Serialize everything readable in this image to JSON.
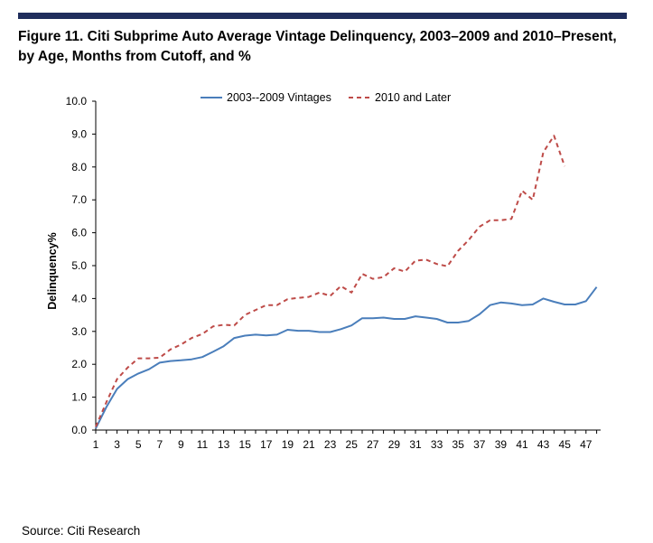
{
  "title": "Figure 11. Citi Subprime Auto Average Vintage Delinquency, 2003–2009 and 2010–Present, by Age, Months from Cutoff, and %",
  "source": "Source: Citi Research",
  "colors": {
    "bar": "#1f2d5c",
    "series1": "#4a7ebb",
    "series2": "#be4b48"
  },
  "chart_data": {
    "type": "line",
    "ylabel": "Delinquency%",
    "xlabel": "",
    "ylim": [
      0,
      10
    ],
    "yticks": [
      "0.0",
      "1.0",
      "2.0",
      "3.0",
      "4.0",
      "5.0",
      "6.0",
      "7.0",
      "8.0",
      "9.0",
      "10.0"
    ],
    "xlim": [
      1,
      48
    ],
    "xticks": [
      "1",
      "3",
      "5",
      "7",
      "9",
      "11",
      "13",
      "15",
      "17",
      "19",
      "21",
      "23",
      "25",
      "27",
      "29",
      "31",
      "33",
      "35",
      "37",
      "39",
      "41",
      "43",
      "45",
      "47"
    ],
    "legend_position": "top",
    "grid": false,
    "series": [
      {
        "name": "2003--2009 Vintages",
        "style": "solid",
        "x": [
          1,
          2,
          3,
          4,
          5,
          6,
          7,
          8,
          9,
          10,
          11,
          12,
          13,
          14,
          15,
          16,
          17,
          18,
          19,
          20,
          21,
          22,
          23,
          24,
          25,
          26,
          27,
          28,
          29,
          30,
          31,
          32,
          33,
          34,
          35,
          36,
          37,
          38,
          39,
          40,
          41,
          42,
          43,
          44,
          45,
          46,
          47,
          48
        ],
        "values": [
          0.05,
          0.7,
          1.25,
          1.55,
          1.72,
          1.85,
          2.05,
          2.1,
          2.12,
          2.15,
          2.22,
          2.38,
          2.55,
          2.8,
          2.87,
          2.9,
          2.88,
          2.9,
          3.05,
          3.02,
          3.02,
          2.98,
          2.98,
          3.07,
          3.18,
          3.4,
          3.4,
          3.42,
          3.38,
          3.38,
          3.46,
          3.42,
          3.38,
          3.27,
          3.27,
          3.32,
          3.52,
          3.8,
          3.88,
          3.85,
          3.8,
          3.82,
          4.0,
          3.9,
          3.82,
          3.82,
          3.92,
          4.35
        ]
      },
      {
        "name": "2010 and Later",
        "style": "dashed",
        "x": [
          1,
          2,
          3,
          4,
          5,
          6,
          7,
          8,
          9,
          10,
          11,
          12,
          13,
          14,
          15,
          16,
          17,
          18,
          19,
          20,
          21,
          22,
          23,
          24,
          25,
          26,
          27,
          28,
          29,
          30,
          31,
          32,
          33,
          34,
          35,
          36,
          37,
          38,
          39,
          40,
          41,
          42,
          43,
          44,
          45
        ],
        "values": [
          0.1,
          0.85,
          1.55,
          1.9,
          2.18,
          2.18,
          2.2,
          2.45,
          2.6,
          2.8,
          2.92,
          3.15,
          3.2,
          3.18,
          3.5,
          3.65,
          3.8,
          3.8,
          3.98,
          4.02,
          4.05,
          4.18,
          4.08,
          4.38,
          4.18,
          4.75,
          4.6,
          4.65,
          4.92,
          4.82,
          5.15,
          5.18,
          5.05,
          4.98,
          5.45,
          5.78,
          6.18,
          6.38,
          6.38,
          6.42,
          7.28,
          7.0,
          8.45,
          8.95,
          8.02
        ]
      }
    ]
  }
}
